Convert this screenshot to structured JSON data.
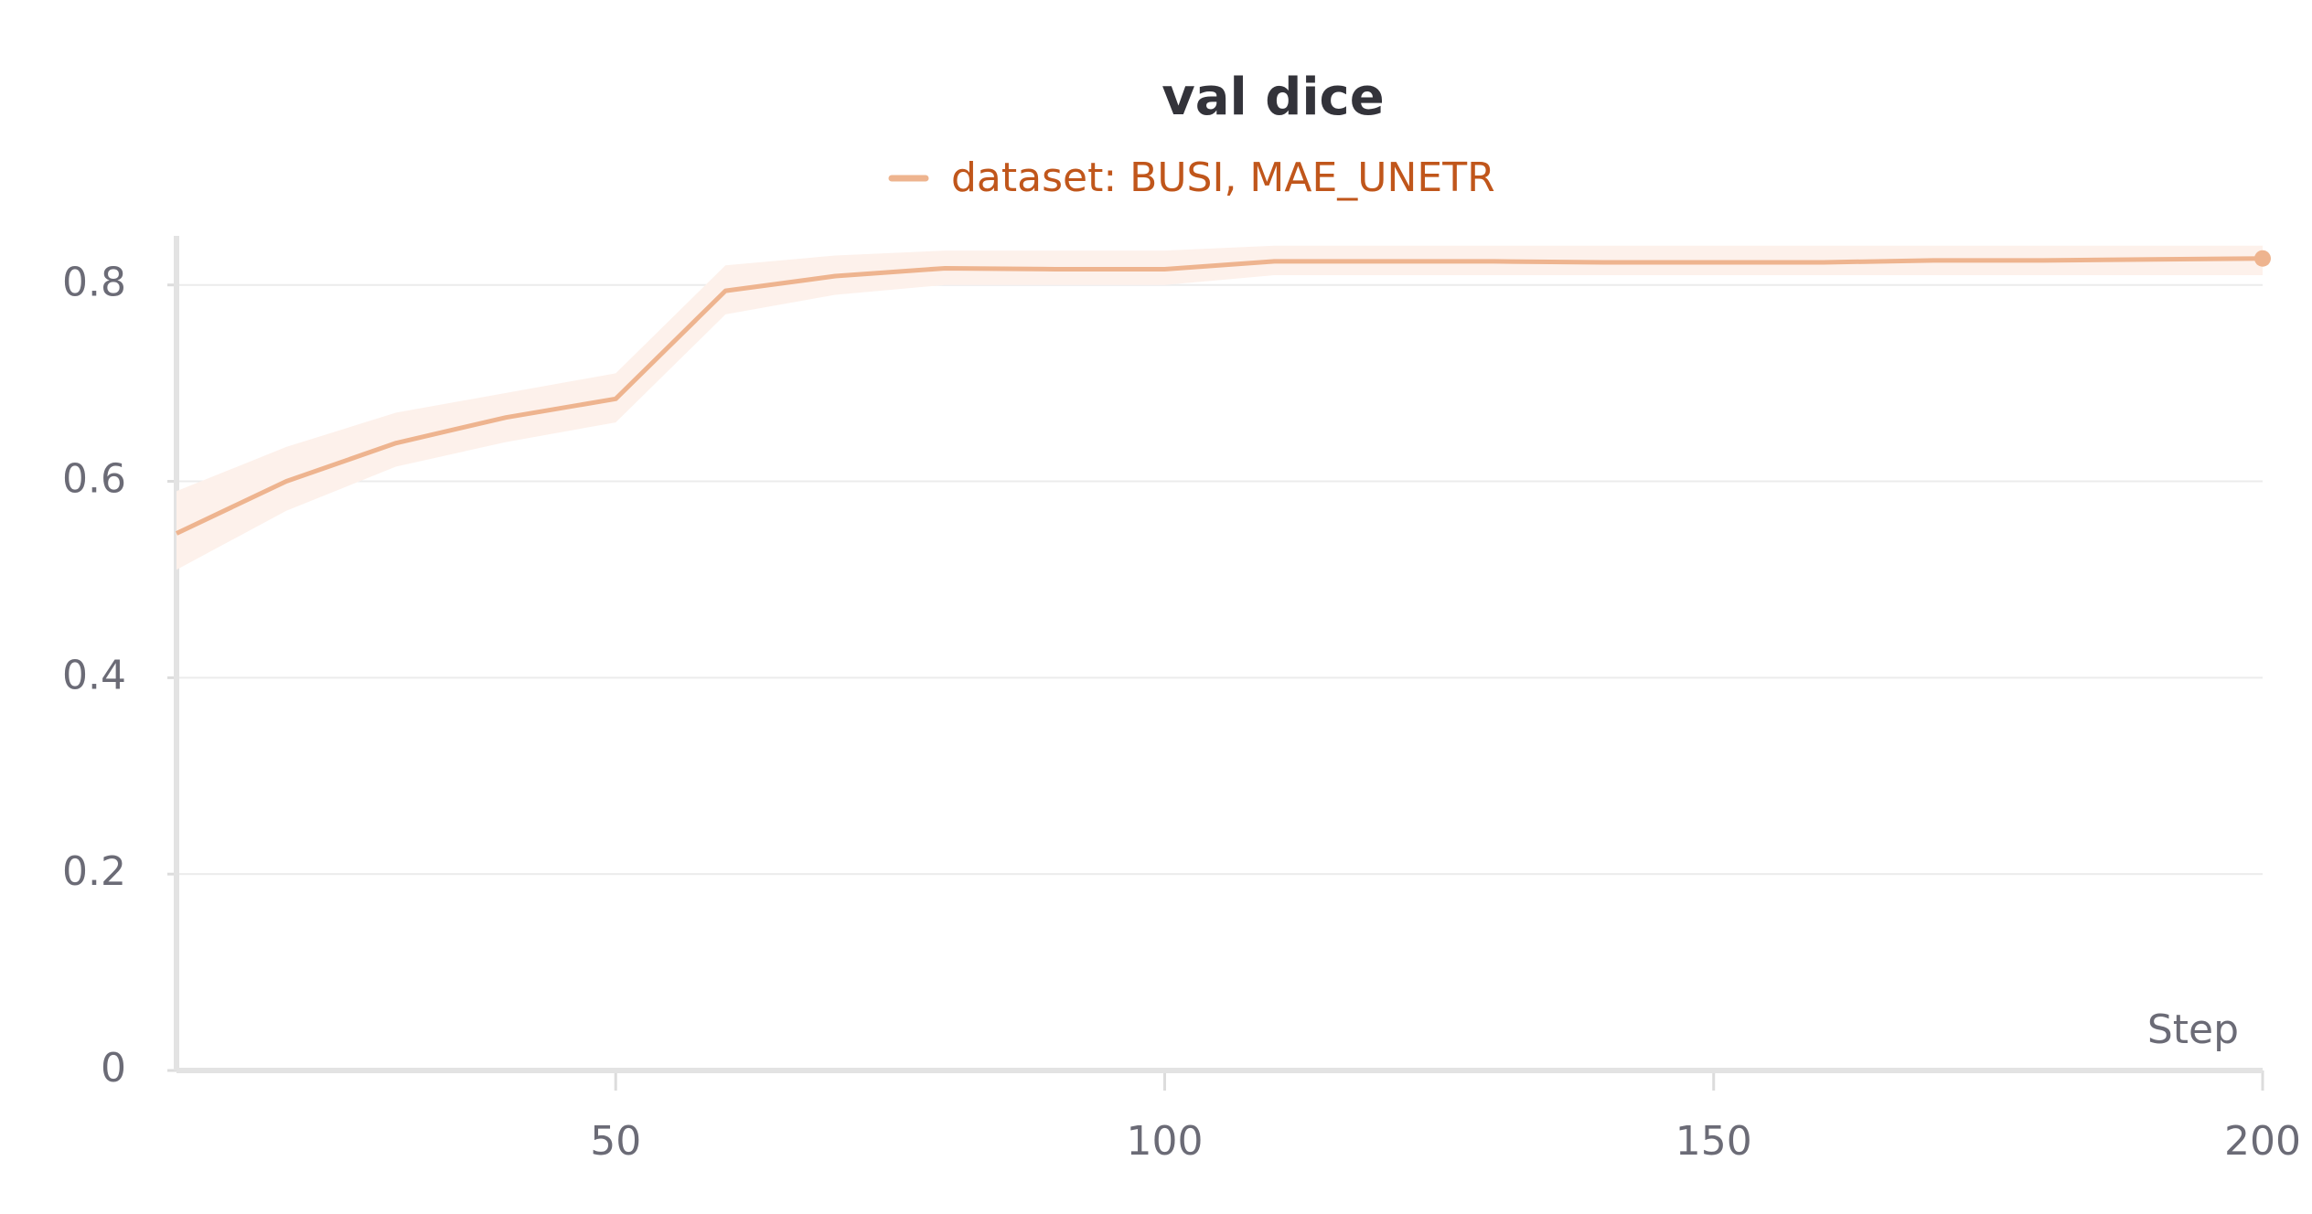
{
  "chart_data": {
    "type": "line",
    "title": "val dice",
    "x_label": "Step",
    "x": [
      10,
      20,
      30,
      40,
      50,
      60,
      70,
      80,
      90,
      100,
      110,
      120,
      130,
      140,
      150,
      160,
      170,
      180,
      190,
      200
    ],
    "series": [
      {
        "name": "dataset: BUSI, MAE_UNETR",
        "color": "#eeb48f",
        "legend_color": "#c0561b",
        "values": [
          0.547,
          0.6,
          0.639,
          0.665,
          0.684,
          0.794,
          0.809,
          0.817,
          0.816,
          0.816,
          0.824,
          0.824,
          0.824,
          0.823,
          0.823,
          0.823,
          0.825,
          0.825,
          0.826,
          0.827
        ],
        "band_upper": [
          0.59,
          0.635,
          0.67,
          0.69,
          0.71,
          0.82,
          0.83,
          0.835,
          0.835,
          0.835,
          0.84,
          0.84,
          0.84,
          0.84,
          0.84,
          0.84,
          0.84,
          0.84,
          0.84,
          0.84
        ],
        "band_lower": [
          0.51,
          0.57,
          0.615,
          0.64,
          0.66,
          0.77,
          0.79,
          0.8,
          0.8,
          0.8,
          0.81,
          0.81,
          0.81,
          0.81,
          0.81,
          0.81,
          0.81,
          0.81,
          0.81,
          0.81
        ],
        "band_color": "#fdf1eb"
      }
    ],
    "xlim": [
      10,
      200
    ],
    "xticks": [
      50,
      100,
      150,
      200
    ],
    "ylim": [
      0,
      0.85
    ],
    "yticks": [
      0,
      0.2,
      0.4,
      0.6,
      0.8
    ],
    "grid": true
  }
}
